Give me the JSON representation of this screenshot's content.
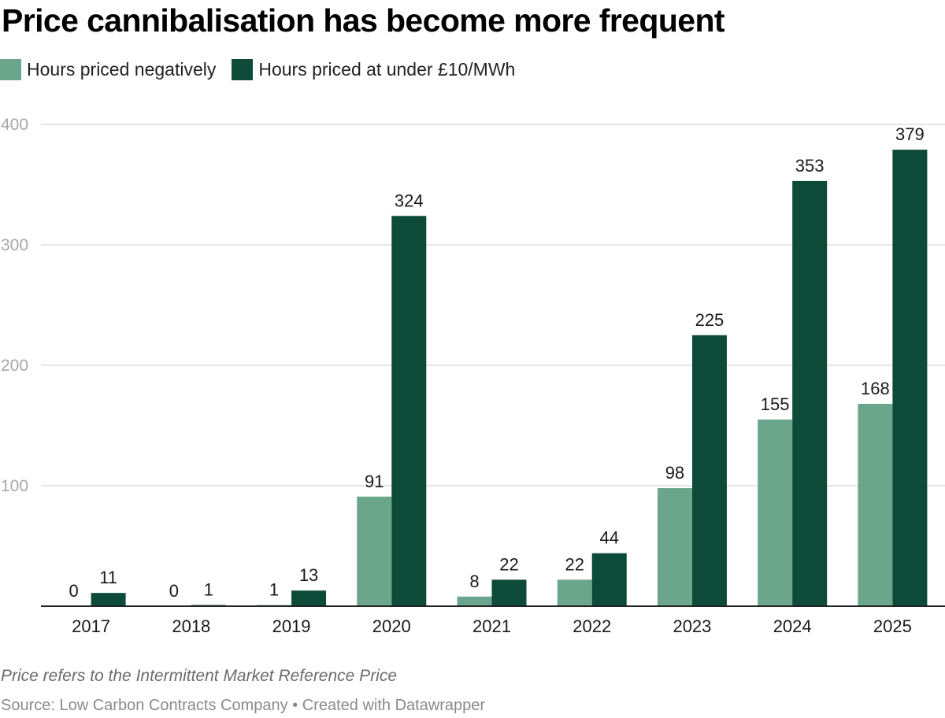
{
  "title": "Price cannibalisation has become more frequent",
  "note": "Price refers to the Intermittent Market Reference Price",
  "source": "Source: Low Carbon Contracts Company • Created with Datawrapper",
  "legend": [
    {
      "label": "Hours priced negatively",
      "color": "#6aa58c"
    },
    {
      "label": "Hours priced at under £10/MWh",
      "color": "#0d4a38"
    }
  ],
  "chart_data": {
    "type": "bar",
    "title": "Price cannibalisation has become more frequent",
    "xlabel": "",
    "ylabel": "",
    "categories": [
      "2017",
      "2018",
      "2019",
      "2020",
      "2021",
      "2022",
      "2023",
      "2024",
      "2025"
    ],
    "series": [
      {
        "name": "Hours priced negatively",
        "color": "#6aa58c",
        "values": [
          0,
          0,
          1,
          91,
          8,
          22,
          98,
          155,
          168
        ]
      },
      {
        "name": "Hours priced at under £10/MWh",
        "color": "#0d4a38",
        "values": [
          11,
          1,
          13,
          324,
          22,
          44,
          225,
          353,
          379
        ]
      }
    ],
    "ylim": [
      0,
      400
    ],
    "yticks": [
      100,
      200,
      300,
      400
    ],
    "grid": true,
    "legend_position": "top-left",
    "data_labels": true
  }
}
